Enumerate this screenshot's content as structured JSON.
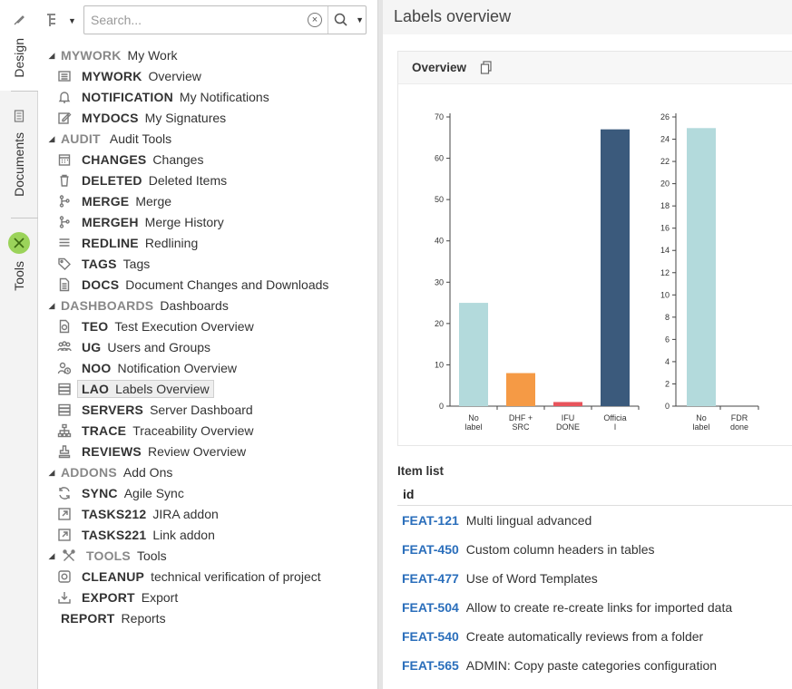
{
  "rail": {
    "tabs": [
      {
        "label": "Design",
        "icon": "brush-icon"
      },
      {
        "label": "Documents",
        "icon": "document-icon"
      },
      {
        "label": "Tools",
        "icon": "tools-icon"
      }
    ]
  },
  "search": {
    "placeholder": "Search...",
    "value": ""
  },
  "tree": [
    {
      "code": "MYWORK",
      "label": "My Work",
      "level": 0,
      "folder": true,
      "icon": ""
    },
    {
      "code": "MYWORK",
      "label": "Overview",
      "level": 1,
      "folder": false,
      "icon": "list-icon"
    },
    {
      "code": "NOTIFICATION",
      "label": "My Notifications",
      "level": 1,
      "folder": false,
      "icon": "bell-icon"
    },
    {
      "code": "MYDOCS",
      "label": "My Signatures",
      "level": 1,
      "folder": false,
      "icon": "signature-icon"
    },
    {
      "code": "AUDIT",
      "label": " Audit Tools",
      "level": 0,
      "folder": true,
      "icon": ""
    },
    {
      "code": "CHANGES",
      "label": "Changes",
      "level": 1,
      "folder": false,
      "icon": "calendar-icon"
    },
    {
      "code": "DELETED",
      "label": "Deleted Items",
      "level": 1,
      "folder": false,
      "icon": "trash-icon"
    },
    {
      "code": "MERGE",
      "label": "Merge",
      "level": 1,
      "folder": false,
      "icon": "branch-icon"
    },
    {
      "code": "MERGEH",
      "label": "Merge History",
      "level": 1,
      "folder": false,
      "icon": "branch-icon"
    },
    {
      "code": "REDLINE",
      "label": "Redlining",
      "level": 1,
      "folder": false,
      "icon": "lines-icon"
    },
    {
      "code": "TAGS",
      "label": "Tags",
      "level": 1,
      "folder": false,
      "icon": "tag-icon"
    },
    {
      "code": "DOCS",
      "label": "Document Changes and Downloads",
      "level": 1,
      "folder": false,
      "icon": "document-icon"
    },
    {
      "code": "DASHBOARDS",
      "label": "Dashboards",
      "level": 0,
      "folder": true,
      "icon": ""
    },
    {
      "code": "TEO",
      "label": "Test Execution Overview",
      "level": 1,
      "folder": false,
      "icon": "test-icon"
    },
    {
      "code": "UG",
      "label": "Users and Groups",
      "level": 1,
      "folder": false,
      "icon": "users-icon"
    },
    {
      "code": "NOO",
      "label": "Notification Overview",
      "level": 1,
      "folder": false,
      "icon": "user-clock-icon"
    },
    {
      "code": "LAO",
      "label": "Labels Overview",
      "level": 1,
      "folder": false,
      "icon": "server-icon",
      "selected": true
    },
    {
      "code": "SERVERS",
      "label": "Server Dashboard",
      "level": 1,
      "folder": false,
      "icon": "server-icon"
    },
    {
      "code": "TRACE",
      "label": "Traceability Overview",
      "level": 1,
      "folder": false,
      "icon": "hierarchy-icon"
    },
    {
      "code": "REVIEWS",
      "label": "Review Overview",
      "level": 1,
      "folder": false,
      "icon": "stamp-icon"
    },
    {
      "code": "ADDONS",
      "label": "Add Ons",
      "level": 0,
      "folder": true,
      "icon": ""
    },
    {
      "code": "SYNC",
      "label": "Agile Sync",
      "level": 1,
      "folder": false,
      "icon": "sync-icon"
    },
    {
      "code": "TASKS212",
      "label": "JIRA addon",
      "level": 1,
      "folder": false,
      "icon": "external-link-icon"
    },
    {
      "code": "TASKS221",
      "label": "Link addon",
      "level": 1,
      "folder": false,
      "icon": "external-link-icon"
    },
    {
      "code": "TOOLS",
      "label": "Tools",
      "level": 0,
      "folder": true,
      "icon": "tools-icon"
    },
    {
      "code": "CLEANUP",
      "label": "technical verification of project",
      "level": 1,
      "folder": false,
      "icon": "cleanup-icon"
    },
    {
      "code": "EXPORT",
      "label": "Export",
      "level": 1,
      "folder": false,
      "icon": "download-icon"
    },
    {
      "code": "REPORT",
      "label": "Reports",
      "level": 0,
      "folder": false,
      "icon": "",
      "noCaret": true
    }
  ],
  "main": {
    "title": "Labels overview",
    "card_title": "Overview",
    "item_list_title": "Item list",
    "item_column": "id",
    "items": [
      {
        "id": "FEAT-121",
        "title": "Multi lingual advanced"
      },
      {
        "id": "FEAT-450",
        "title": "Custom column headers in tables"
      },
      {
        "id": "FEAT-477",
        "title": "Use of Word Templates"
      },
      {
        "id": "FEAT-504",
        "title": "Allow to create re-create links for imported data"
      },
      {
        "id": "FEAT-540",
        "title": "Create automatically reviews from a folder"
      },
      {
        "id": "FEAT-565",
        "title": "ADMIN: Copy paste categories configuration"
      }
    ]
  },
  "chart_data": [
    {
      "type": "bar",
      "categories": [
        [
          "No",
          "label"
        ],
        [
          "DHF +",
          "SRC"
        ],
        [
          "IFU",
          "DONE"
        ],
        [
          "Officia",
          "l"
        ]
      ],
      "values": [
        25,
        8,
        1,
        67
      ],
      "colors": [
        "#b3dadc",
        "#f59a45",
        "#e8545c",
        "#3b5a7c"
      ],
      "ylim": [
        0,
        70
      ],
      "yticks": [
        0,
        10,
        20,
        30,
        40,
        50,
        60,
        70
      ]
    },
    {
      "type": "bar",
      "categories": [
        [
          "No",
          "label"
        ],
        [
          "FDR",
          "done"
        ]
      ],
      "values": [
        25,
        0
      ],
      "colors": [
        "#b3dadc",
        "#b3dadc"
      ],
      "ylim": [
        0,
        26
      ],
      "yticks": [
        0,
        2,
        4,
        6,
        8,
        10,
        12,
        14,
        16,
        18,
        20,
        22,
        24,
        26
      ]
    }
  ]
}
